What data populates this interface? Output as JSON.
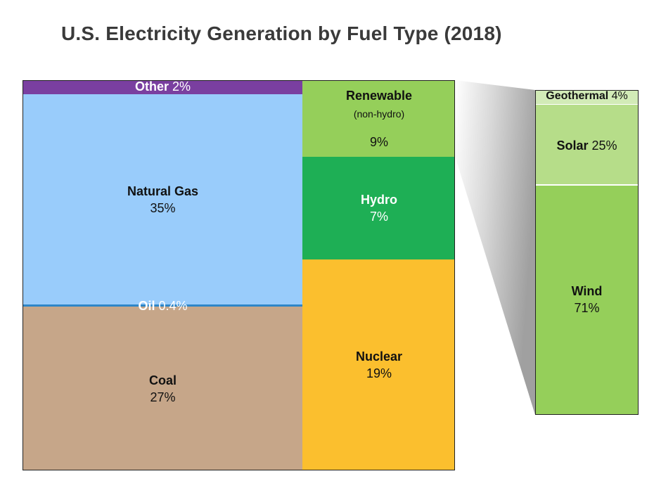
{
  "title": "U.S. Electricity Generation by Fuel Type (2018)",
  "colors": {
    "other": "#7A3FA0",
    "natural_gas": "#99CCFB",
    "oil": "#2E86C8",
    "coal": "#C6A689",
    "renewable": "#95CF5A",
    "hydro": "#1EAF55",
    "nuclear": "#FBBF2E",
    "geothermal": "#D2EBB7",
    "solar": "#B6DD89",
    "wind": "#95CF5A"
  },
  "chart_data": {
    "type": "treemap",
    "title": "U.S. Electricity Generation by Fuel Type (2018)",
    "items": [
      {
        "name": "Other",
        "value": 2,
        "label": "2%"
      },
      {
        "name": "Natural Gas",
        "value": 35,
        "label": "35%"
      },
      {
        "name": "Oil",
        "value": 0.4,
        "label": "0.4%"
      },
      {
        "name": "Coal",
        "value": 27,
        "label": "27%"
      },
      {
        "name": "Renewable",
        "note": "(non-hydro)",
        "value": 9,
        "label": "9%"
      },
      {
        "name": "Hydro",
        "value": 7,
        "label": "7%"
      },
      {
        "name": "Nuclear",
        "value": 19,
        "label": "19%"
      }
    ],
    "breakdown": {
      "of": "Renewable (non-hydro)",
      "items": [
        {
          "name": "Geothermal",
          "value": 4,
          "label": "4%"
        },
        {
          "name": "Solar",
          "value": 25,
          "label": "25%"
        },
        {
          "name": "Wind",
          "value": 71,
          "label": "71%"
        }
      ]
    }
  }
}
